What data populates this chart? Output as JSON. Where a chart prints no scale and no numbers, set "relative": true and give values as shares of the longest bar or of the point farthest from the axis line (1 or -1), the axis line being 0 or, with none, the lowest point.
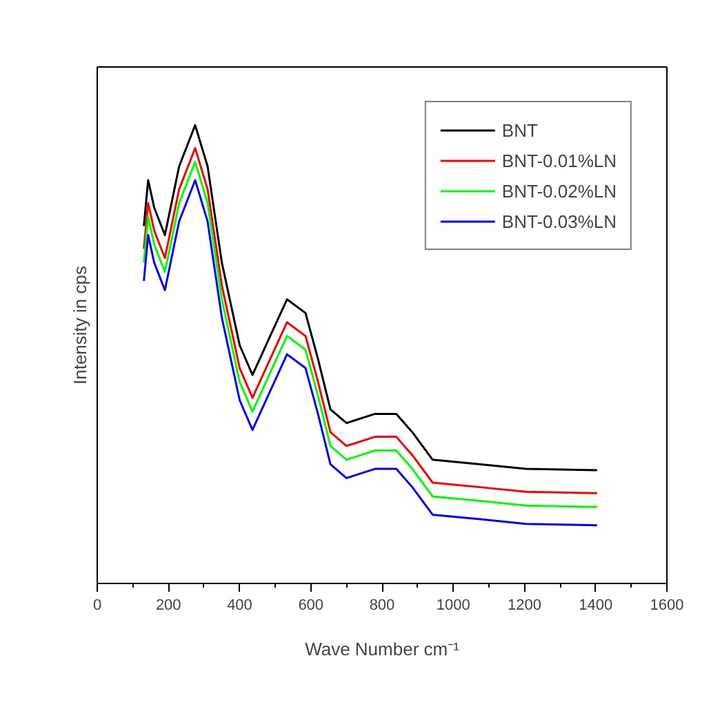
{
  "chart_data": {
    "type": "line",
    "relative": true,
    "xlabel": "Wave Number cm⁻¹",
    "ylabel": "Intensity in cps",
    "xlim": [
      0,
      1600
    ],
    "xticks": [
      0,
      200,
      400,
      600,
      800,
      1000,
      1200,
      1400,
      1600
    ],
    "grid": false,
    "legend": "top right",
    "tick_labels": "x",
    "x": [
      131,
      143,
      160,
      190,
      230,
      275,
      310,
      350,
      400,
      436,
      480,
      533,
      585,
      620,
      655,
      700,
      780,
      840,
      885,
      942,
      1077,
      1204,
      1404
    ],
    "series": [
      {
        "name": "BNT",
        "color": "#000000",
        "values": [
          0.78,
          0.88,
          0.82,
          0.76,
          0.91,
          1.0,
          0.91,
          0.7,
          0.52,
          0.455,
          0.53,
          0.62,
          0.59,
          0.49,
          0.38,
          0.35,
          0.37,
          0.37,
          0.33,
          0.27,
          0.26,
          0.25,
          0.247
        ]
      },
      {
        "name": "BNT-0.01%LN",
        "color": "#ff0000",
        "values": [
          0.73,
          0.83,
          0.77,
          0.71,
          0.86,
          0.95,
          0.86,
          0.65,
          0.47,
          0.405,
          0.48,
          0.57,
          0.54,
          0.44,
          0.33,
          0.3,
          0.32,
          0.32,
          0.28,
          0.22,
          0.21,
          0.2,
          0.197
        ]
      },
      {
        "name": "BNT-0.02%LN",
        "color": "#00ff00",
        "values": [
          0.7,
          0.8,
          0.74,
          0.68,
          0.83,
          0.92,
          0.83,
          0.62,
          0.44,
          0.375,
          0.45,
          0.54,
          0.51,
          0.41,
          0.3,
          0.27,
          0.29,
          0.29,
          0.25,
          0.19,
          0.18,
          0.17,
          0.167
        ]
      },
      {
        "name": "BNT-0.03%LN",
        "color": "#0000ff",
        "values": [
          0.66,
          0.76,
          0.7,
          0.64,
          0.79,
          0.88,
          0.79,
          0.58,
          0.4,
          0.335,
          0.41,
          0.5,
          0.47,
          0.37,
          0.26,
          0.23,
          0.25,
          0.25,
          0.21,
          0.15,
          0.14,
          0.13,
          0.127
        ]
      }
    ]
  }
}
